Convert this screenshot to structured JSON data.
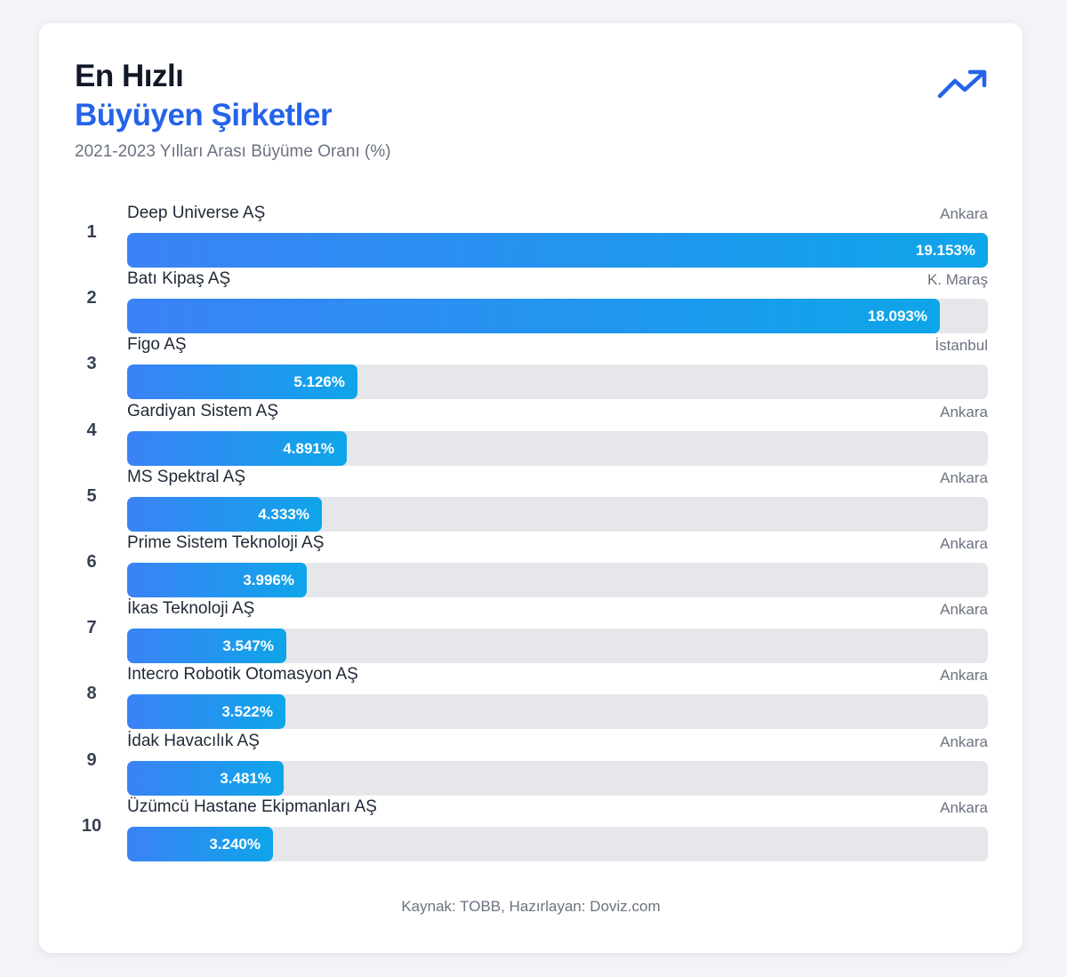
{
  "header": {
    "title_line1": "En Hızlı",
    "title_line2": "Büyüyen Şirketler",
    "subtitle": "2021-2023 Yılları Arası Büyüme Oranı (%)",
    "icon": "trending-up-icon"
  },
  "colors": {
    "accent": "#2563eb",
    "bar_start": "#3b82f6",
    "bar_end": "#0ea5e9",
    "track": "#e5e7eb"
  },
  "chart_data": {
    "type": "bar",
    "orientation": "horizontal",
    "title": "En Hızlı Büyüyen Şirketler",
    "subtitle": "2021-2023 Yılları Arası Büyüme Oranı (%)",
    "xlim": [
      0,
      19.153
    ],
    "grid": false,
    "legend": "none",
    "categories": [
      "Deep Universe AŞ",
      "Batı Kipaş AŞ",
      "Figo AŞ",
      "Gardiyan Sistem AŞ",
      "MS Spektral AŞ",
      "Prime Sistem Teknoloji AŞ",
      "İkas Teknoloji AŞ",
      "Intecro Robotik Otomasyon AŞ",
      "İdak Havacılık AŞ",
      "Üzümcü Hastane Ekipmanları AŞ"
    ],
    "values": [
      19153,
      18093,
      5126,
      4891,
      4333,
      3996,
      3547,
      3522,
      3481,
      3240
    ],
    "rows": [
      {
        "rank": "1",
        "company": "Deep Universe AŞ",
        "city": "Ankara",
        "value": 19153,
        "value_label": "19.153%"
      },
      {
        "rank": "2",
        "company": "Batı Kipaş AŞ",
        "city": "K. Maraş",
        "value": 18093,
        "value_label": "18.093%"
      },
      {
        "rank": "3",
        "company": "Figo AŞ",
        "city": "İstanbul",
        "value": 5126,
        "value_label": "5.126%"
      },
      {
        "rank": "4",
        "company": "Gardiyan Sistem AŞ",
        "city": "Ankara",
        "value": 4891,
        "value_label": "4.891%"
      },
      {
        "rank": "5",
        "company": "MS Spektral AŞ",
        "city": "Ankara",
        "value": 4333,
        "value_label": "4.333%"
      },
      {
        "rank": "6",
        "company": "Prime Sistem Teknoloji AŞ",
        "city": "Ankara",
        "value": 3996,
        "value_label": "3.996%"
      },
      {
        "rank": "7",
        "company": "İkas Teknoloji AŞ",
        "city": "Ankara",
        "value": 3547,
        "value_label": "3.547%"
      },
      {
        "rank": "8",
        "company": "Intecro Robotik Otomasyon AŞ",
        "city": "Ankara",
        "value": 3522,
        "value_label": "3.522%"
      },
      {
        "rank": "9",
        "company": "İdak Havacılık AŞ",
        "city": "Ankara",
        "value": 3481,
        "value_label": "3.481%"
      },
      {
        "rank": "10",
        "company": "Üzümcü Hastane Ekipmanları AŞ",
        "city": "Ankara",
        "value": 3240,
        "value_label": "3.240%"
      }
    ]
  },
  "footer": {
    "source": "Kaynak: TOBB, Hazırlayan: Doviz.com"
  }
}
